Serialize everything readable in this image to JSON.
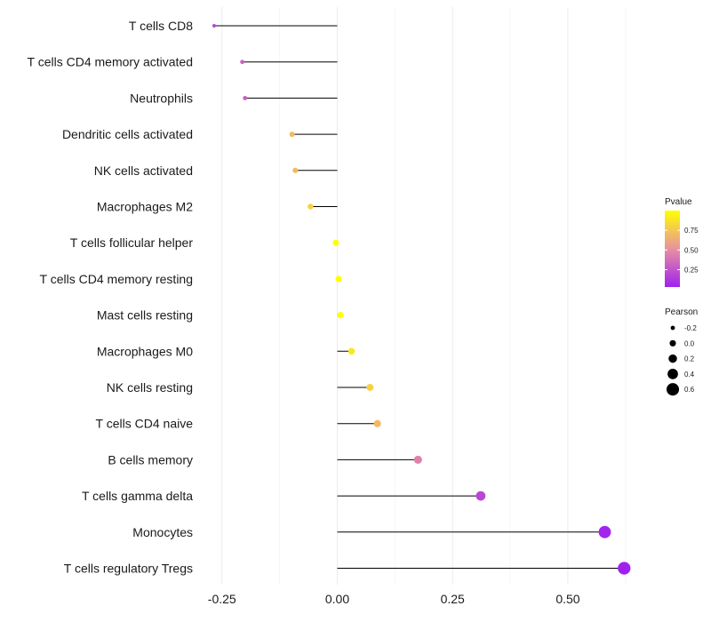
{
  "chart_data": {
    "type": "lollipop",
    "title": "",
    "xlabel": "",
    "ylabel": "",
    "xlim": [
      -0.29,
      0.66
    ],
    "x_ticks": [
      -0.25,
      0.0,
      0.25,
      0.5
    ],
    "x_tick_labels": [
      "-0.25",
      "0.00",
      "0.25",
      "0.50"
    ],
    "categories": [
      "T cells CD8",
      "T cells CD4 memory activated",
      "Neutrophils",
      "Dendritic cells activated",
      "NK cells activated",
      "Macrophages M2",
      "T cells follicular helper",
      "T cells CD4 memory resting",
      "Mast cells resting",
      "Macrophages M0",
      "NK cells resting",
      "T cells CD4 naive",
      "B cells memory",
      "T cells gamma delta",
      "Monocytes",
      "T cells regulatory  Tregs"
    ],
    "pearson": [
      -0.267,
      -0.206,
      -0.2,
      -0.098,
      -0.091,
      -0.058,
      -0.003,
      0.003,
      0.007,
      0.031,
      0.071,
      0.087,
      0.175,
      0.311,
      0.58,
      0.622
    ],
    "pvalue": [
      0.2,
      0.3,
      0.3,
      0.7,
      0.7,
      0.8,
      1.0,
      1.0,
      1.0,
      0.9,
      0.8,
      0.7,
      0.45,
      0.2,
      0.05,
      0.03
    ],
    "legend": {
      "color_title": "Pvalue",
      "color_ticks": [
        0.25,
        0.5,
        0.75
      ],
      "color_tick_labels": [
        "0.25",
        "0.50",
        "0.75"
      ],
      "color_range": [
        0.03,
        1.0
      ],
      "color_low": "#a020f0",
      "color_mid": "#e891a0",
      "color_high": "#ffff00",
      "size_title": "Pearson",
      "size_values": [
        -0.2,
        0.0,
        0.2,
        0.4,
        0.6
      ],
      "size_labels": [
        "-0.2",
        "0.0",
        "0.2",
        "0.4",
        "0.6"
      ],
      "placement": "right"
    },
    "grid": true
  }
}
